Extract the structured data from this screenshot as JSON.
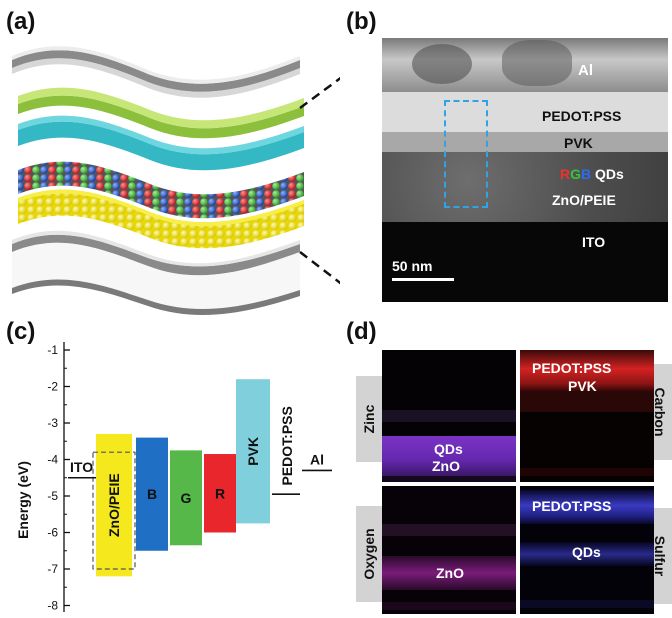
{
  "panel_a": {
    "label": "(a)"
  },
  "panel_b": {
    "label": "(b)",
    "layers": {
      "al": "Al",
      "pedot": "PEDOT:PSS",
      "pvk": "PVK",
      "qd_r": "R",
      "qd_g": "G",
      "qd_b": "B",
      "qds": "QDs",
      "zno": "ZnO/PEIE",
      "ito": "ITO"
    },
    "scale_bar": "50 nm"
  },
  "panel_c": {
    "label": "(c)",
    "ylabel": "Energy (eV)",
    "yticks": [
      "-1",
      "-2",
      "-3",
      "-4",
      "-5",
      "-6",
      "-7",
      "-8"
    ],
    "labels": {
      "ito": "ITO",
      "zno": "ZnO/PEIE",
      "b": "B",
      "g": "G",
      "r": "R",
      "pvk": "PVK",
      "pedot": "PEDOT:PSS",
      "al": "Al"
    },
    "colors": {
      "zno": "#f5e81c",
      "b": "#1f6fc4",
      "g": "#56b848",
      "r": "#e8262c",
      "pvk": "#7fd0dc"
    }
  },
  "chart_data": {
    "type": "bar",
    "ylabel": "Energy (eV)",
    "ylim": [
      -8,
      -1
    ],
    "bands": [
      {
        "name": "ZnO/PEIE",
        "top": -3.3,
        "bottom": -7.2,
        "dashed_top": -3.8,
        "dashed_bottom": -7.0
      },
      {
        "name": "B",
        "top": -3.4,
        "bottom": -6.5
      },
      {
        "name": "G",
        "top": -3.75,
        "bottom": -6.35
      },
      {
        "name": "R",
        "top": -3.85,
        "bottom": -6.0
      },
      {
        "name": "PVK",
        "top": -1.8,
        "bottom": -5.75
      }
    ],
    "levels": [
      {
        "name": "ITO",
        "value": -4.5
      },
      {
        "name": "PEDOT:PSS",
        "value": -4.95
      },
      {
        "name": "Al",
        "value": -4.3
      }
    ]
  },
  "panel_d": {
    "label": "(d)",
    "side_labels": {
      "zinc": "Zinc",
      "carbon": "Carbon",
      "oxygen": "Oxygen",
      "sulfur": "Sulfur"
    },
    "zinc_map": {
      "l1": "QDs",
      "l2": "ZnO"
    },
    "carbon_map": {
      "l1": "PEDOT:PSS",
      "l2": "PVK"
    },
    "oxygen_map": {
      "l1": "ZnO"
    },
    "sulfur_map": {
      "l1": "PEDOT:PSS",
      "l2": "QDs"
    }
  }
}
